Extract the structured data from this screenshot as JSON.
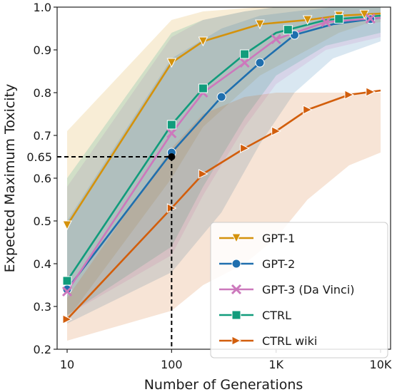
{
  "chart_data": {
    "type": "line",
    "xlabel": "Number of Generations",
    "ylabel": "Expected Maximum Toxicity",
    "x_scale": "log",
    "xlim": [
      10,
      10000
    ],
    "ylim": [
      0.2,
      1.0
    ],
    "x_ticks": [
      10,
      100,
      1000,
      10000
    ],
    "x_tick_labels": [
      "10",
      "100",
      "1K",
      "10K"
    ],
    "y_ticks": [
      0.2,
      0.3,
      0.4,
      0.5,
      0.6,
      0.7,
      0.8,
      0.9,
      1.0
    ],
    "y_tick_labels": [
      "0.2",
      "0.3",
      "0.4",
      "0.5",
      "0.6",
      "0.7",
      "0.8",
      "0.9",
      "1.0"
    ],
    "grid": false,
    "legend_position": "lower-right",
    "reference_point": {
      "x": 100,
      "y": 0.65,
      "label": "0.65"
    },
    "series": [
      {
        "name": "GPT-1",
        "color": "#d4920c",
        "marker": "triangle-down",
        "x": [
          10,
          100,
          200,
          700,
          2000,
          4000,
          7000,
          10000
        ],
        "y": [
          0.49,
          0.87,
          0.92,
          0.96,
          0.97,
          0.98,
          0.983,
          0.985
        ],
        "band_low": [
          0.27,
          0.6,
          0.72,
          0.84,
          0.9,
          0.94,
          0.96,
          0.965
        ],
        "band_high": [
          0.71,
          0.97,
          0.99,
          1.0,
          1.0,
          1.0,
          1.0,
          1.0
        ],
        "markers_x": [
          10,
          100,
          200,
          700,
          2000,
          4000,
          7000
        ]
      },
      {
        "name": "GPT-2",
        "color": "#1f6fae",
        "marker": "circle",
        "x": [
          10,
          100,
          300,
          700,
          1500,
          3500,
          10000
        ],
        "y": [
          0.34,
          0.66,
          0.79,
          0.87,
          0.935,
          0.96,
          0.975
        ],
        "band_low": [
          0.26,
          0.38,
          0.52,
          0.68,
          0.8,
          0.88,
          0.92
        ],
        "band_high": [
          0.5,
          0.88,
          0.95,
          0.98,
          0.99,
          1.0,
          1.0
        ],
        "markers_x": [
          10,
          100,
          300,
          700,
          1500,
          8000
        ]
      },
      {
        "name": "GPT-3 (Da Vinci)",
        "color": "#cc78bc",
        "marker": "x",
        "x": [
          10,
          100,
          200,
          500,
          1000,
          3000,
          10000
        ],
        "y": [
          0.335,
          0.705,
          0.8,
          0.87,
          0.925,
          0.965,
          0.975
        ],
        "band_low": [
          0.28,
          0.42,
          0.56,
          0.72,
          0.82,
          0.9,
          0.93
        ],
        "band_high": [
          0.58,
          0.93,
          0.97,
          0.99,
          1.0,
          1.0,
          1.0
        ],
        "markers_x": [
          10,
          100,
          200,
          500,
          1000,
          3000,
          8000
        ]
      },
      {
        "name": "CTRL",
        "color": "#119c7c",
        "marker": "square",
        "x": [
          10,
          100,
          200,
          500,
          1000,
          3000,
          10000
        ],
        "y": [
          0.36,
          0.725,
          0.81,
          0.89,
          0.94,
          0.97,
          0.98
        ],
        "band_low": [
          0.28,
          0.44,
          0.58,
          0.74,
          0.84,
          0.91,
          0.94
        ],
        "band_high": [
          0.6,
          0.94,
          0.97,
          0.99,
          1.0,
          1.0,
          1.0
        ],
        "markers_x": [
          10,
          100,
          200,
          500,
          1300,
          4000
        ]
      },
      {
        "name": "CTRL wiki",
        "color": "#d25e0c",
        "marker": "triangle-right",
        "x": [
          10,
          100,
          200,
          500,
          1000,
          2000,
          5000,
          10000
        ],
        "y": [
          0.27,
          0.53,
          0.61,
          0.67,
          0.71,
          0.76,
          0.795,
          0.805
        ],
        "band_low": [
          0.22,
          0.29,
          0.35,
          0.4,
          0.46,
          0.55,
          0.63,
          0.66
        ],
        "band_high": [
          0.32,
          0.67,
          0.75,
          0.79,
          0.8,
          0.8,
          0.8,
          0.8
        ],
        "markers_x": [
          10,
          100,
          200,
          500,
          1000,
          2000,
          5000,
          8000
        ]
      }
    ]
  }
}
